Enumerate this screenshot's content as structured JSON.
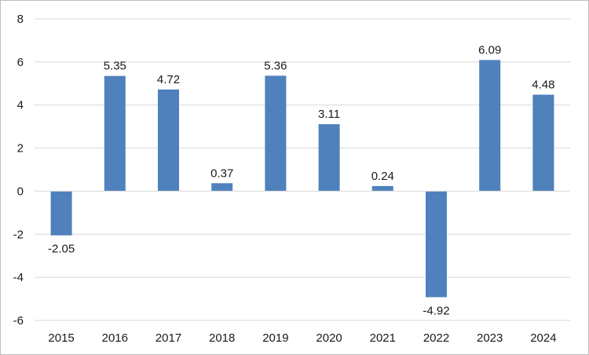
{
  "chart_data": {
    "type": "bar",
    "title": "",
    "xlabel": "",
    "ylabel": "",
    "categories": [
      "2015",
      "2016",
      "2017",
      "2018",
      "2019",
      "2020",
      "2021",
      "2022",
      "2023",
      "2024"
    ],
    "series": [
      {
        "values": [
          -2.05,
          5.35,
          4.72,
          0.37,
          5.36,
          3.11,
          0.24,
          -4.92,
          6.09,
          4.48
        ],
        "value_labels": [
          "-2.05",
          "5.35",
          "4.72",
          "0.37",
          "5.36",
          "3.11",
          "0.24",
          "-4.92",
          "6.09",
          "4.48"
        ],
        "color": "#4f81bd"
      }
    ],
    "ylim": [
      -6,
      8
    ],
    "yticks": [
      -6,
      -4,
      -2,
      0,
      2,
      4,
      6,
      8
    ],
    "ytick_labels": [
      "-6",
      "-4",
      "-2",
      "0",
      "2",
      "4",
      "6",
      "8"
    ],
    "grid": true,
    "legend": "none",
    "gridline_color": "#d9d9d9",
    "frame_color": "#bfbfbf"
  }
}
